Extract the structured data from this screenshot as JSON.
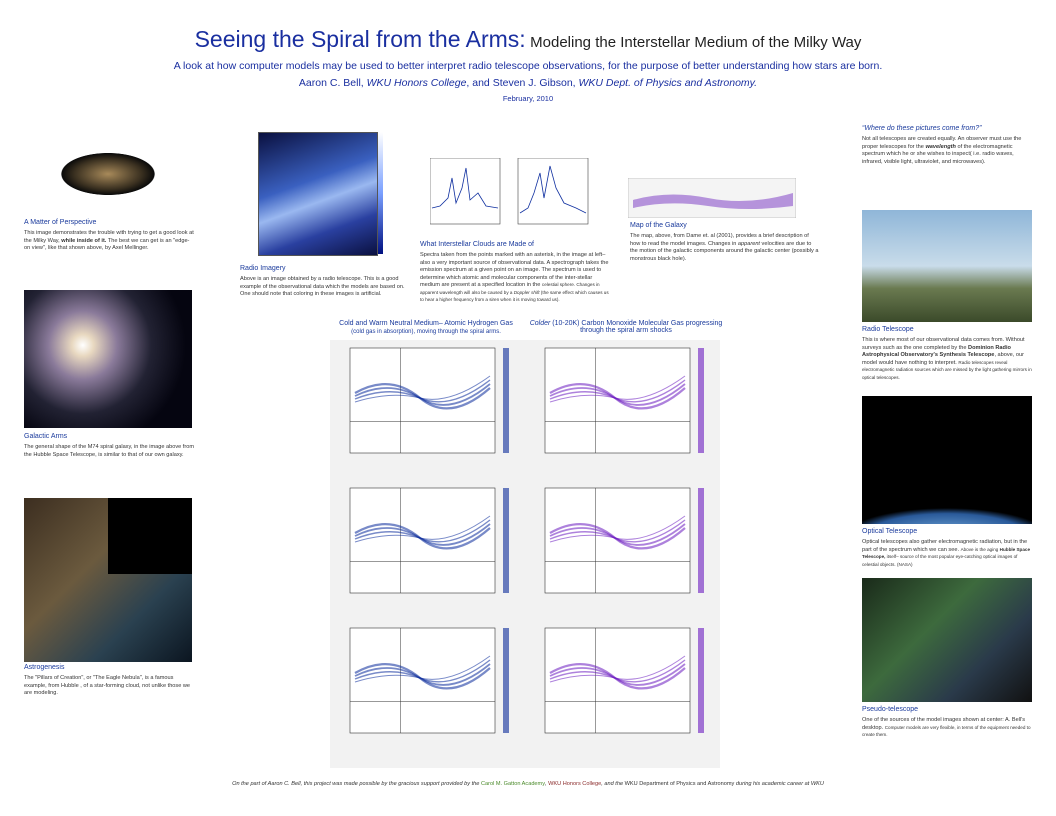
{
  "header": {
    "title_main": "Seeing the Spiral from the Arms:",
    "title_sub": "Modeling the Interstellar Medium of the Milky Way",
    "subtitle": "A look at how computer models may be used to better interpret radio telescope observations, for the purpose of better understanding how stars are born.",
    "authors": [
      "Aaron C. Bell, ",
      "WKU Honors College",
      ", and Steven J. Gibson, ",
      "WKU Dept. of Physics and Astronomy."
    ],
    "date": "February, 2010"
  },
  "left": [
    {
      "heading": "A Matter of Perspective",
      "body": [
        "This image demonstrates the trouble with trying to get a good look at the Milky Way, ",
        "while inside of it.",
        " The best we can get is an \"edge-on view\", like that shown above, by Axel Mellinger."
      ]
    },
    {
      "heading": "Galactic Arms",
      "body": [
        "The general shape of the M74 spiral galaxy, in the image above from the Hubble Space Telescope, is similar to that of our own galaxy."
      ]
    },
    {
      "heading": "Astrogenesis",
      "body": [
        "The \"Pillars of Creation\", or \"The Eagle Nebula\", is a famous example, from Hubble , of a star-forming cloud, not unlike those we are modeling."
      ]
    }
  ],
  "center": [
    {
      "heading": "Radio Imagery",
      "body": [
        "Above is an image obtained by a radio telescope. This is a good example of the observational data which the models are based on. One should note that coloring in these images is artificial."
      ]
    },
    {
      "heading": "What Interstellar Clouds are Made of",
      "body": [
        "Spectra taken from the points marked with an asterisk, in the image at left– also a very important source of observational data. A spectrograph takes the emission spectrum at a given point on an image. The spectrum is used to determine which atomic and molecular components of the inter-stellar medium are present at a specified location in the ",
        "celestial sphere. Changes in apparent wavelength will also be caused by a ",
        "Doppler shift",
        " (the same effect which causes us to hear a higher frequency from a siren when it is moving toward us)."
      ]
    },
    {
      "heading": "Map of the Galaxy",
      "body": [
        "The map, above, from Dame et. al (2001), provides a brief description of how to read the model images. Changes in ",
        "apparent",
        " velocities are due to the motion of the galactic components around the galactic center (possibly a monstrous black hole)."
      ]
    }
  ],
  "model_columns": [
    {
      "title": "Cold and Warm Neutral Medium– Atomic Hydrogen Gas",
      "note": "(cold gas in absorption), moving through the spiral arms."
    },
    {
      "title_em": "Colder",
      "title": " (10-20K) Carbon Monoxide Molecular Gas progressing through the spiral arm shocks"
    }
  ],
  "right": [
    {
      "heading": "“Where do these pictures come from?”",
      "body": [
        "Not all telescopes are created equally. An observer must use the proper telescopes for the ",
        "wavelength",
        " of the electromagnetic spectrum which he or she wishes to inspect( i.e. radio waves, infrared, visible light, ultraviolet, and microwaves)."
      ]
    },
    {
      "heading": "Radio Telescope",
      "body": [
        "This is where most of our observational data comes from. Without surveys such as the one completed by the ",
        "Dominion Radio Astrophysical Observatory's Synthesis Telescope",
        ", above, our model would have nothing to interpret. ",
        "Radio telescopes reveal electromagnetic radiation sources which are missed by the light gathering mirrors in optical telescopes."
      ]
    },
    {
      "heading": "Optical Telescope",
      "body": [
        "Optical telescopes also gather electromagnetic radiation, but in the part of the spectrum which we can see. ",
        "Above is the aging ",
        "Hubble Space Telescope,",
        " itself– source of the most popular eye-catching optical images of celestial objects. (NASA)"
      ]
    },
    {
      "heading": "Pseudo-telescope",
      "body": [
        "One of the sources of the model images shown at center: A. Bell's desktop. ",
        "Computer models are very flexible, in terms of the equipment needed to create them."
      ]
    }
  ],
  "footer": [
    "On the part of Aaron C. Bell, this project was made possible by the gracious support provided by the ",
    "Carol M. Gatton Academy",
    ", ",
    "WKU Honors College",
    ", and the ",
    "WKU Department of Physics and Astronomy",
    " during his academic career at WKU"
  ]
}
